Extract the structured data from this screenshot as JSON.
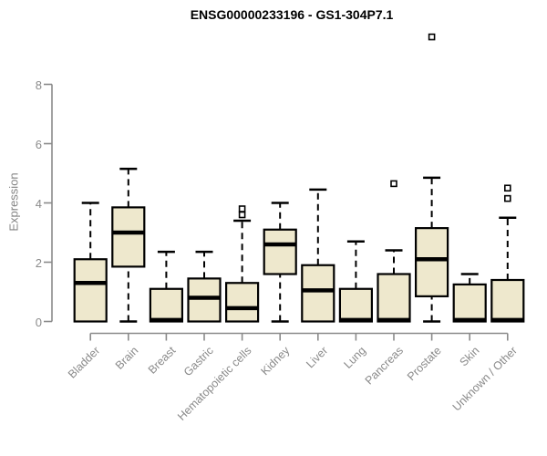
{
  "title": "ENSG00000233196 - GS1-304P7.1",
  "chart_data": {
    "type": "boxplot",
    "title": "ENSG00000233196 - GS1-304P7.1",
    "xlabel": "",
    "ylabel": "Expression",
    "ylim": [
      0,
      8
    ],
    "yticks": [
      0,
      2,
      4,
      6,
      8
    ],
    "grid": false,
    "legend": "none",
    "colors": {
      "box_fill": "#EEE8CD",
      "box_stroke": "#000000",
      "median": "#000000",
      "whisker": "#000000",
      "axis": "#8a8a8a",
      "tick_text": "#8a8a8a",
      "title_text": "#000000",
      "background": "#ffffff"
    },
    "categories": [
      "Bladder",
      "Brain",
      "Breast",
      "Gastric",
      "Hematopoietic cells",
      "Kidney",
      "Liver",
      "Lung",
      "Pancreas",
      "Prostate",
      "Skin",
      "Unknown / Other"
    ],
    "series": [
      {
        "name": "Bladder",
        "lo": 0,
        "q1": 0,
        "median": 1.3,
        "q3": 2.1,
        "hi": 4.0,
        "outliers": []
      },
      {
        "name": "Brain",
        "lo": 0,
        "q1": 1.85,
        "median": 3.0,
        "q3": 3.85,
        "hi": 5.15,
        "outliers": []
      },
      {
        "name": "Breast",
        "lo": 0,
        "q1": 0,
        "median": 0.05,
        "q3": 1.1,
        "hi": 2.35,
        "outliers": []
      },
      {
        "name": "Gastric",
        "lo": 0,
        "q1": 0,
        "median": 0.8,
        "q3": 1.45,
        "hi": 2.35,
        "outliers": []
      },
      {
        "name": "Hematopoietic cells",
        "lo": 0,
        "q1": 0,
        "median": 0.45,
        "q3": 1.3,
        "hi": 3.4,
        "outliers": [
          3.6,
          3.8
        ]
      },
      {
        "name": "Kidney",
        "lo": 0,
        "q1": 1.6,
        "median": 2.6,
        "q3": 3.1,
        "hi": 4.0,
        "outliers": []
      },
      {
        "name": "Liver",
        "lo": 0,
        "q1": 0,
        "median": 1.05,
        "q3": 1.9,
        "hi": 4.45,
        "outliers": []
      },
      {
        "name": "Lung",
        "lo": 0,
        "q1": 0,
        "median": 0.05,
        "q3": 1.1,
        "hi": 2.7,
        "outliers": []
      },
      {
        "name": "Pancreas",
        "lo": 0,
        "q1": 0,
        "median": 0.05,
        "q3": 1.6,
        "hi": 2.4,
        "outliers": [
          4.65
        ]
      },
      {
        "name": "Prostate",
        "lo": 0,
        "q1": 0.85,
        "median": 2.1,
        "q3": 3.15,
        "hi": 4.85,
        "outliers": [
          9.6
        ]
      },
      {
        "name": "Skin",
        "lo": 0,
        "q1": 0,
        "median": 0.05,
        "q3": 1.25,
        "hi": 1.6,
        "outliers": []
      },
      {
        "name": "Unknown / Other",
        "lo": 0,
        "q1": 0,
        "median": 0.05,
        "q3": 1.4,
        "hi": 3.5,
        "outliers": [
          4.15,
          4.5
        ]
      }
    ]
  }
}
